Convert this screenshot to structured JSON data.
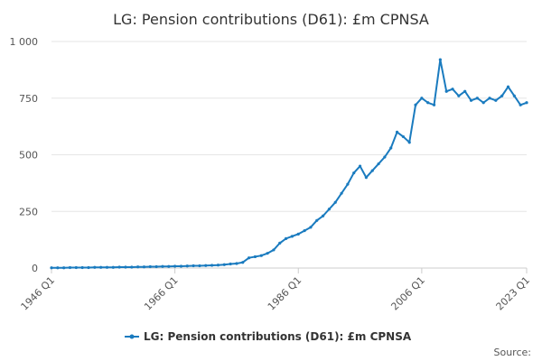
{
  "chart_data": {
    "type": "line",
    "title": "LG: Pension contributions (D61): £m CPNSA",
    "source": "Source:",
    "x": [
      "1946 Q1",
      "1947 Q1",
      "1948 Q1",
      "1949 Q1",
      "1950 Q1",
      "1951 Q1",
      "1952 Q1",
      "1953 Q1",
      "1954 Q1",
      "1955 Q1",
      "1956 Q1",
      "1957 Q1",
      "1958 Q1",
      "1959 Q1",
      "1960 Q1",
      "1961 Q1",
      "1962 Q1",
      "1963 Q1",
      "1964 Q1",
      "1965 Q1",
      "1966 Q1",
      "1967 Q1",
      "1968 Q1",
      "1969 Q1",
      "1970 Q1",
      "1971 Q1",
      "1972 Q1",
      "1973 Q1",
      "1974 Q1",
      "1975 Q1",
      "1976 Q1",
      "1977 Q1",
      "1978 Q1",
      "1979 Q1",
      "1980 Q1",
      "1981 Q1",
      "1982 Q1",
      "1983 Q1",
      "1984 Q1",
      "1985 Q1",
      "1986 Q1",
      "1987 Q1",
      "1988 Q1",
      "1989 Q1",
      "1990 Q1",
      "1991 Q1",
      "1992 Q1",
      "1993 Q1",
      "1994 Q1",
      "1995 Q1",
      "1996 Q1",
      "1997 Q1",
      "1998 Q1",
      "1999 Q1",
      "2000 Q1",
      "2001 Q1",
      "2002 Q1",
      "2003 Q1",
      "2004 Q1",
      "2005 Q1",
      "2006 Q1",
      "2007 Q1",
      "2008 Q1",
      "2009 Q1",
      "2010 Q1",
      "2011 Q1",
      "2012 Q1",
      "2013 Q1",
      "2014 Q1",
      "2015 Q1",
      "2016 Q1",
      "2017 Q1",
      "2018 Q1",
      "2019 Q1",
      "2020 Q1",
      "2021 Q1",
      "2022 Q1",
      "2023 Q1"
    ],
    "series": [
      {
        "name": "LG: Pension contributions (D61): £m CPNSA",
        "color": "#1a7bbf",
        "values": [
          1,
          1,
          1,
          2,
          2,
          2,
          2,
          3,
          3,
          3,
          3,
          4,
          4,
          4,
          5,
          5,
          6,
          6,
          7,
          7,
          8,
          8,
          9,
          10,
          10,
          11,
          12,
          13,
          15,
          18,
          20,
          25,
          45,
          50,
          55,
          65,
          80,
          110,
          130,
          140,
          150,
          165,
          180,
          210,
          230,
          260,
          290,
          330,
          370,
          420,
          450,
          400,
          430,
          460,
          490,
          530,
          600,
          580,
          555,
          720,
          750,
          730,
          720,
          920,
          780,
          790,
          760,
          780,
          740,
          750,
          730,
          750,
          740,
          760,
          800,
          760,
          720,
          730
        ]
      }
    ],
    "ylim": [
      0,
      1000
    ],
    "yticks": [
      0,
      250,
      500,
      750,
      {
        "value": 1000,
        "label": "1 000"
      }
    ],
    "xticks": [
      "1946 Q1",
      "1966 Q1",
      "1986 Q1",
      "2006 Q1",
      "2023 Q1"
    ],
    "grid": true
  }
}
